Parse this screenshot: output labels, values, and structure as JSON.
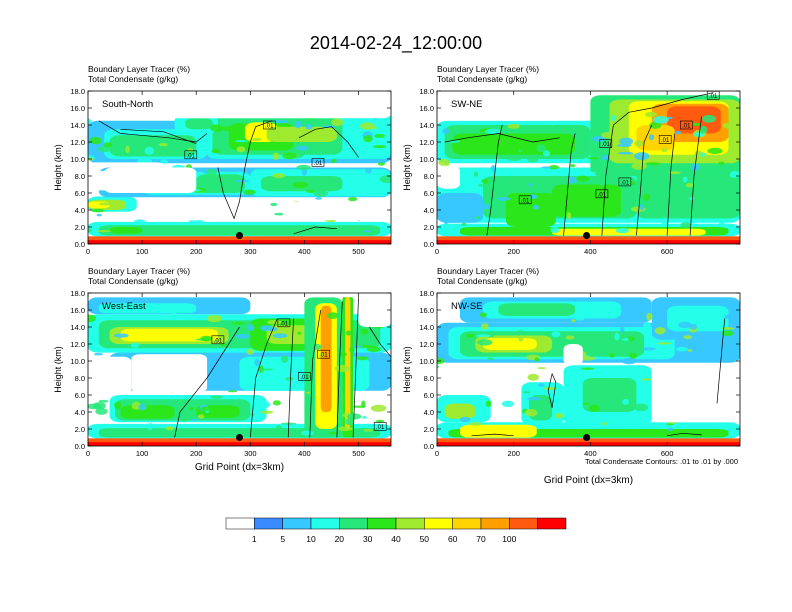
{
  "figure_title": "2014-02-24_12:00:00",
  "chart_data": [
    {
      "type": "heatmap",
      "name": "south-north",
      "panel_label": "South-North",
      "subtitle_line1": "Boundary Layer Tracer   (%)",
      "subtitle_line2": "Total Condensate   (g/kg)",
      "ylabel": "Height (km)",
      "xlabel": "",
      "xlim": [
        0,
        560
      ],
      "ylim": [
        0,
        18
      ],
      "x_ticks": [
        "0",
        "100",
        "200",
        "300",
        "400",
        "500"
      ],
      "x_tick_values": [
        0,
        100,
        200,
        300,
        400,
        500
      ],
      "y_ticks": [
        "0.0",
        "2.0",
        "4.0",
        "6.0",
        "8.0",
        "10.0",
        "12.0",
        "14.0",
        "16.0",
        "18.0"
      ],
      "contour_labels": [
        {
          "text": ".01",
          "x": 190,
          "y": 10.5
        },
        {
          "text": ".01",
          "x": 335,
          "y": 14.0
        },
        {
          "text": ".01",
          "x": 425,
          "y": 9.6
        }
      ],
      "marker": {
        "x": 280,
        "y": 1.0
      }
    },
    {
      "type": "heatmap",
      "name": "sw-ne",
      "panel_label": "SW-NE",
      "subtitle_line1": "Boundary Layer Tracer   (%)",
      "subtitle_line2": "Total Condensate   (g/kg)",
      "ylabel": "Height (km)",
      "xlabel": "",
      "xlim": [
        0,
        790
      ],
      "ylim": [
        0,
        18
      ],
      "x_ticks": [
        "0",
        "200",
        "400",
        "600"
      ],
      "x_tick_values": [
        0,
        200,
        400,
        600
      ],
      "y_ticks": [
        "0.0",
        "2.0",
        "4.0",
        "6.0",
        "8.0",
        "10.0",
        "12.0",
        "14.0",
        "16.0",
        "18.0"
      ],
      "contour_labels": [
        {
          "text": ".01",
          "x": 720,
          "y": 17.5
        },
        {
          "text": ".01",
          "x": 440,
          "y": 11.8
        },
        {
          "text": ".01",
          "x": 595,
          "y": 12.3
        },
        {
          "text": ".01",
          "x": 650,
          "y": 14.0
        },
        {
          "text": ".01",
          "x": 430,
          "y": 5.9
        },
        {
          "text": ".01",
          "x": 230,
          "y": 5.2
        },
        {
          "text": ".01",
          "x": 490,
          "y": 7.3
        }
      ],
      "marker": {
        "x": 390,
        "y": 1.0
      }
    },
    {
      "type": "heatmap",
      "name": "west-east",
      "panel_label": "West-East",
      "subtitle_line1": "Boundary Layer Tracer   (%)",
      "subtitle_line2": "Total Condensate   (g/kg)",
      "ylabel": "Height (km)",
      "xlabel": "Grid Point (dx=3km)",
      "xlim": [
        0,
        560
      ],
      "ylim": [
        0,
        18
      ],
      "x_ticks": [
        "0",
        "100",
        "200",
        "300",
        "400",
        "500"
      ],
      "x_tick_values": [
        0,
        100,
        200,
        300,
        400,
        500
      ],
      "y_ticks": [
        "0.0",
        "2.0",
        "4.0",
        "6.0",
        "8.0",
        "10.0",
        "12.0",
        "14.0",
        "16.0",
        "18.0"
      ],
      "contour_labels": [
        {
          "text": ".01",
          "x": 240,
          "y": 12.5
        },
        {
          "text": ".01",
          "x": 362,
          "y": 14.5
        },
        {
          "text": ".01",
          "x": 435,
          "y": 10.8
        },
        {
          "text": ".01",
          "x": 400,
          "y": 8.2
        },
        {
          "text": ".01",
          "x": 540,
          "y": 2.3
        }
      ],
      "marker": {
        "x": 280,
        "y": 1.0
      }
    },
    {
      "type": "heatmap",
      "name": "nw-se",
      "panel_label": "NW-SE",
      "subtitle_line1": "Boundary Layer Tracer   (%)",
      "subtitle_line2": "Total Condensate   (g/kg)",
      "ylabel": "Height (km)",
      "xlabel": "Grid Point (dx=3km)",
      "xlim": [
        0,
        790
      ],
      "ylim": [
        0,
        18
      ],
      "x_ticks": [
        "0",
        "200",
        "400",
        "600"
      ],
      "x_tick_values": [
        0,
        200,
        400,
        600
      ],
      "y_ticks": [
        "0.0",
        "2.0",
        "4.0",
        "6.0",
        "8.0",
        "10.0",
        "12.0",
        "14.0",
        "16.0",
        "18.0"
      ],
      "contour_labels": [],
      "marker": {
        "x": 390,
        "y": 1.0
      }
    }
  ],
  "contour_info": "Total Condensate Contours: .01 to .01 by .000",
  "colorbar": {
    "labels": [
      "1",
      "5",
      "10",
      "20",
      "30",
      "40",
      "50",
      "60",
      "70",
      "100"
    ],
    "colors": [
      "#ffffff",
      "#3a8bff",
      "#36c8ff",
      "#23ffe8",
      "#26e87a",
      "#2ae61a",
      "#9dea2e",
      "#ffff00",
      "#ffd400",
      "#ffa000",
      "#ff5a10",
      "#ff0000"
    ]
  }
}
